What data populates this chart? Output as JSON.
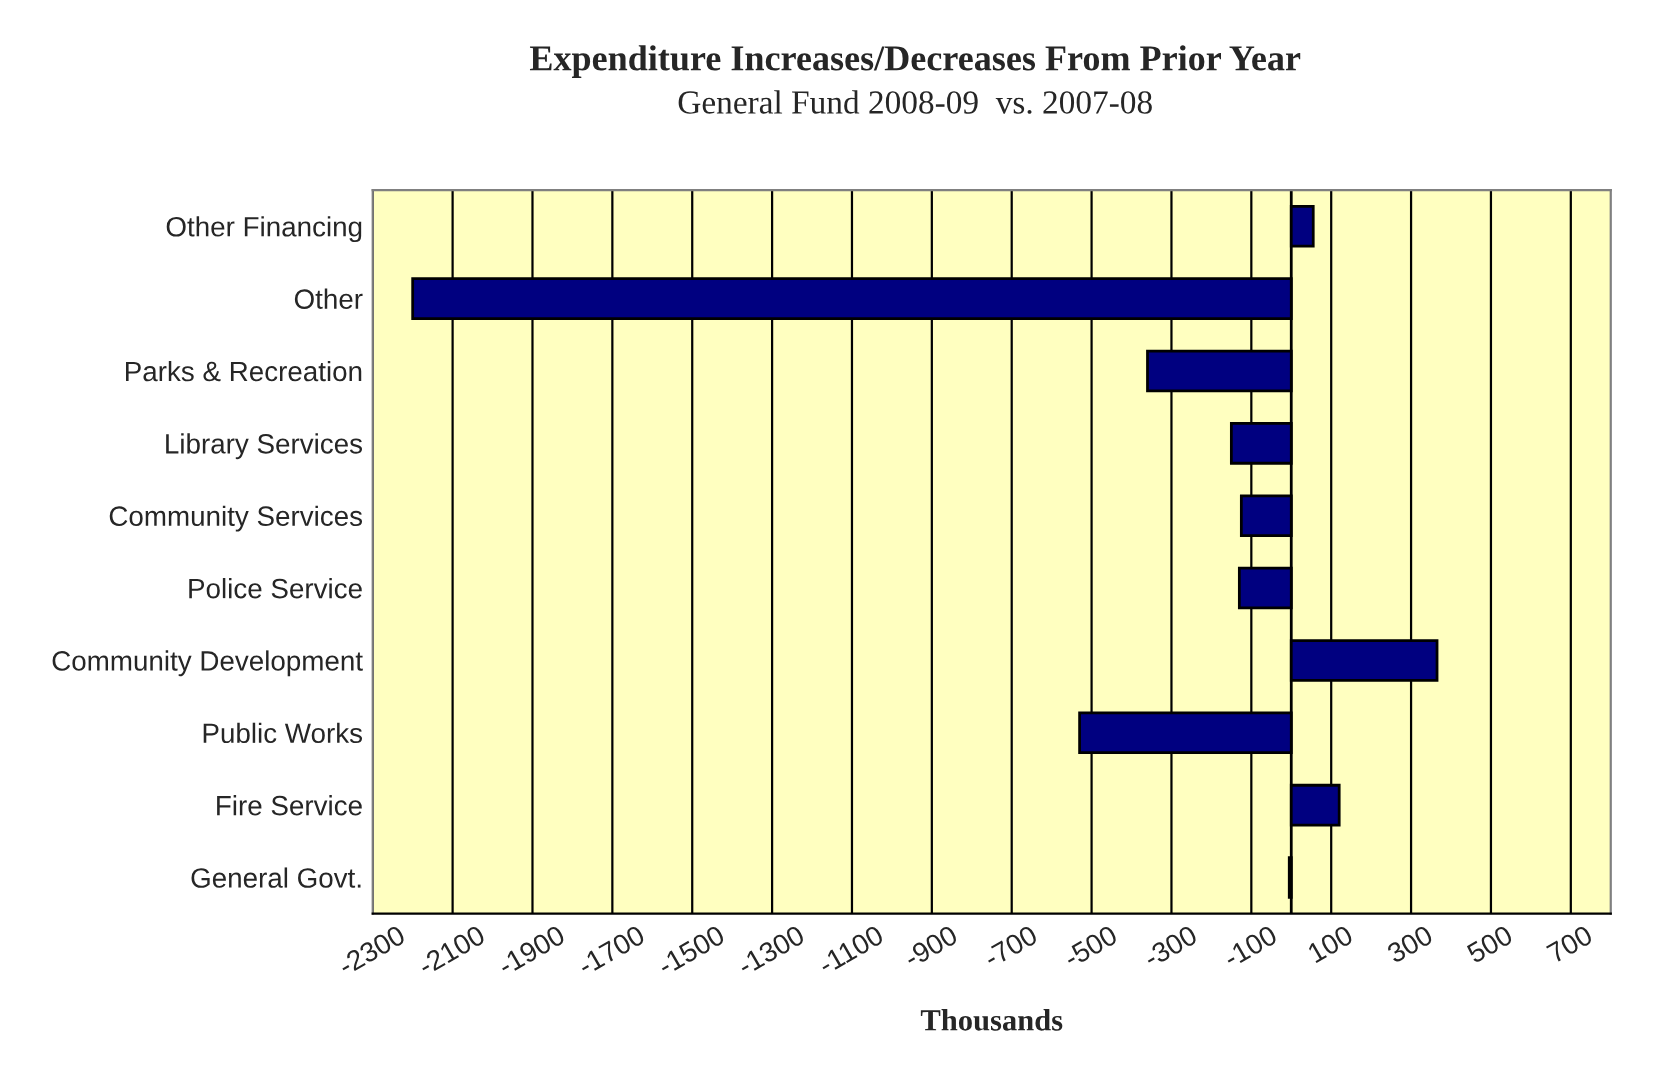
{
  "chart_data": {
    "type": "bar",
    "orientation": "horizontal",
    "title": "Expenditure Increases/Decreases From Prior Year",
    "subtitle": "General Fund 2008-09  vs. 2007-08",
    "xlabel": "Thousands",
    "categories": [
      "Other Financing",
      "Other",
      "Parks & Recreation",
      "Library Services",
      "Community Services",
      "Police Service",
      "Community Development",
      "Public Works",
      "Fire Service",
      "General Govt."
    ],
    "values": [
      55,
      -2200,
      -360,
      -150,
      -125,
      -130,
      365,
      -530,
      120,
      -5
    ],
    "color": "#000080",
    "xlim": [
      -2300,
      800
    ],
    "xticks": [
      -2300,
      -2100,
      -1900,
      -1700,
      -1500,
      -1300,
      -1100,
      -900,
      -700,
      -500,
      -300,
      -100,
      100,
      300,
      500,
      700
    ],
    "grid": "x",
    "legend": false
  }
}
